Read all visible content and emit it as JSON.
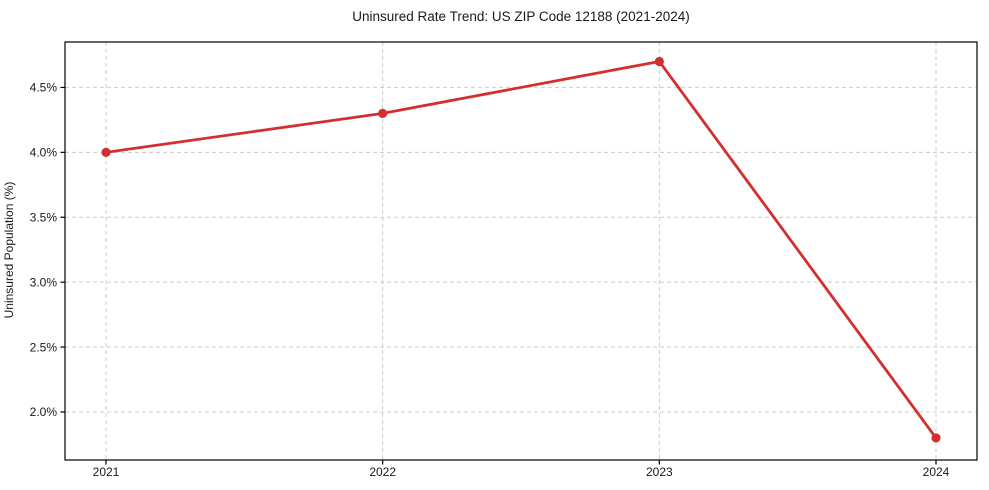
{
  "chart_data": {
    "type": "line",
    "title": "Uninsured Rate Trend: US ZIP Code 12188 (2021-2024)",
    "xlabel": "",
    "ylabel": "Uninsured Population (%)",
    "x": [
      "2021",
      "2022",
      "2023",
      "2024"
    ],
    "series": [
      {
        "name": "Uninsured Population (%)",
        "values": [
          4.0,
          4.3,
          4.7,
          1.8
        ],
        "marker": "circle"
      }
    ],
    "ylim": [
      1.63,
      4.85
    ],
    "yticks": [
      2.0,
      2.5,
      3.0,
      3.5,
      4.0,
      4.5
    ],
    "ytick_labels": [
      "2.0%",
      "2.5%",
      "3.0%",
      "3.5%",
      "4.0%",
      "4.5%"
    ],
    "xtick_labels": [
      "2021",
      "2022",
      "2023",
      "2024"
    ],
    "grid": true,
    "grid_style": "dashed",
    "legend_position": "none",
    "colors": {
      "line": "#d32f2f",
      "marker": "#d32f2f",
      "grid": "#cccccc",
      "spine": "#000000",
      "text": "#1a1a1a"
    }
  }
}
